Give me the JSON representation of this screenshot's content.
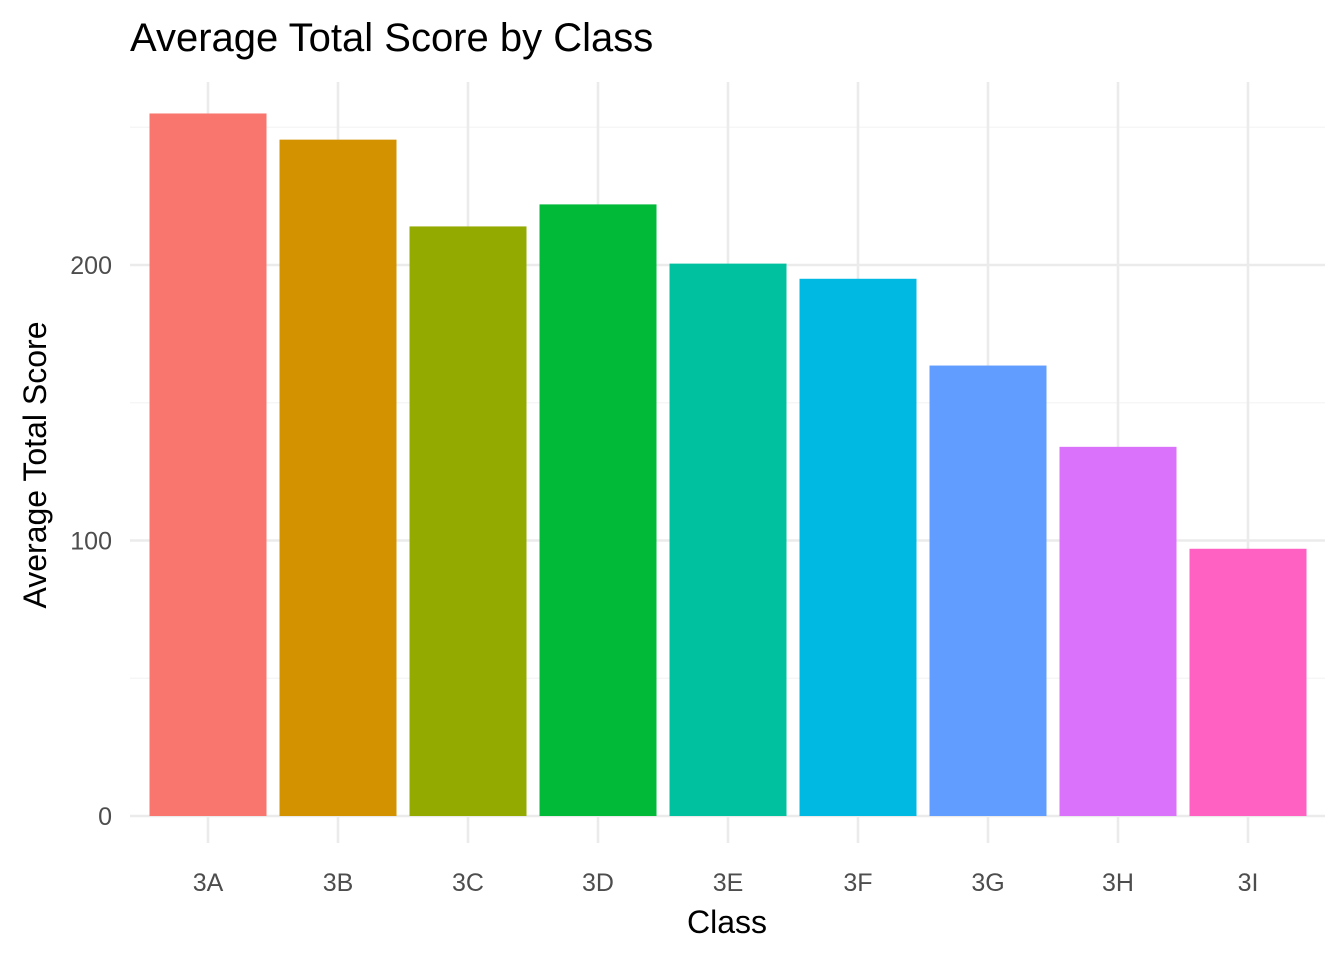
{
  "chart_data": {
    "type": "bar",
    "title": "Average Total Score by Class",
    "xlabel": "Class",
    "ylabel": "Average Total Score",
    "categories": [
      "3A",
      "3B",
      "3C",
      "3D",
      "3E",
      "3F",
      "3G",
      "3H",
      "3I"
    ],
    "values": [
      255,
      245.5,
      214,
      222,
      200.5,
      195,
      163.5,
      134,
      97
    ],
    "colors": [
      "#F8766D",
      "#D39200",
      "#93AA00",
      "#00BA38",
      "#00C19F",
      "#00B9E3",
      "#619CFF",
      "#DB72FB",
      "#FF61C3"
    ],
    "ylim": [
      0,
      267
    ],
    "yticks": [
      0,
      100,
      200
    ],
    "grid": true,
    "legend": "none"
  }
}
